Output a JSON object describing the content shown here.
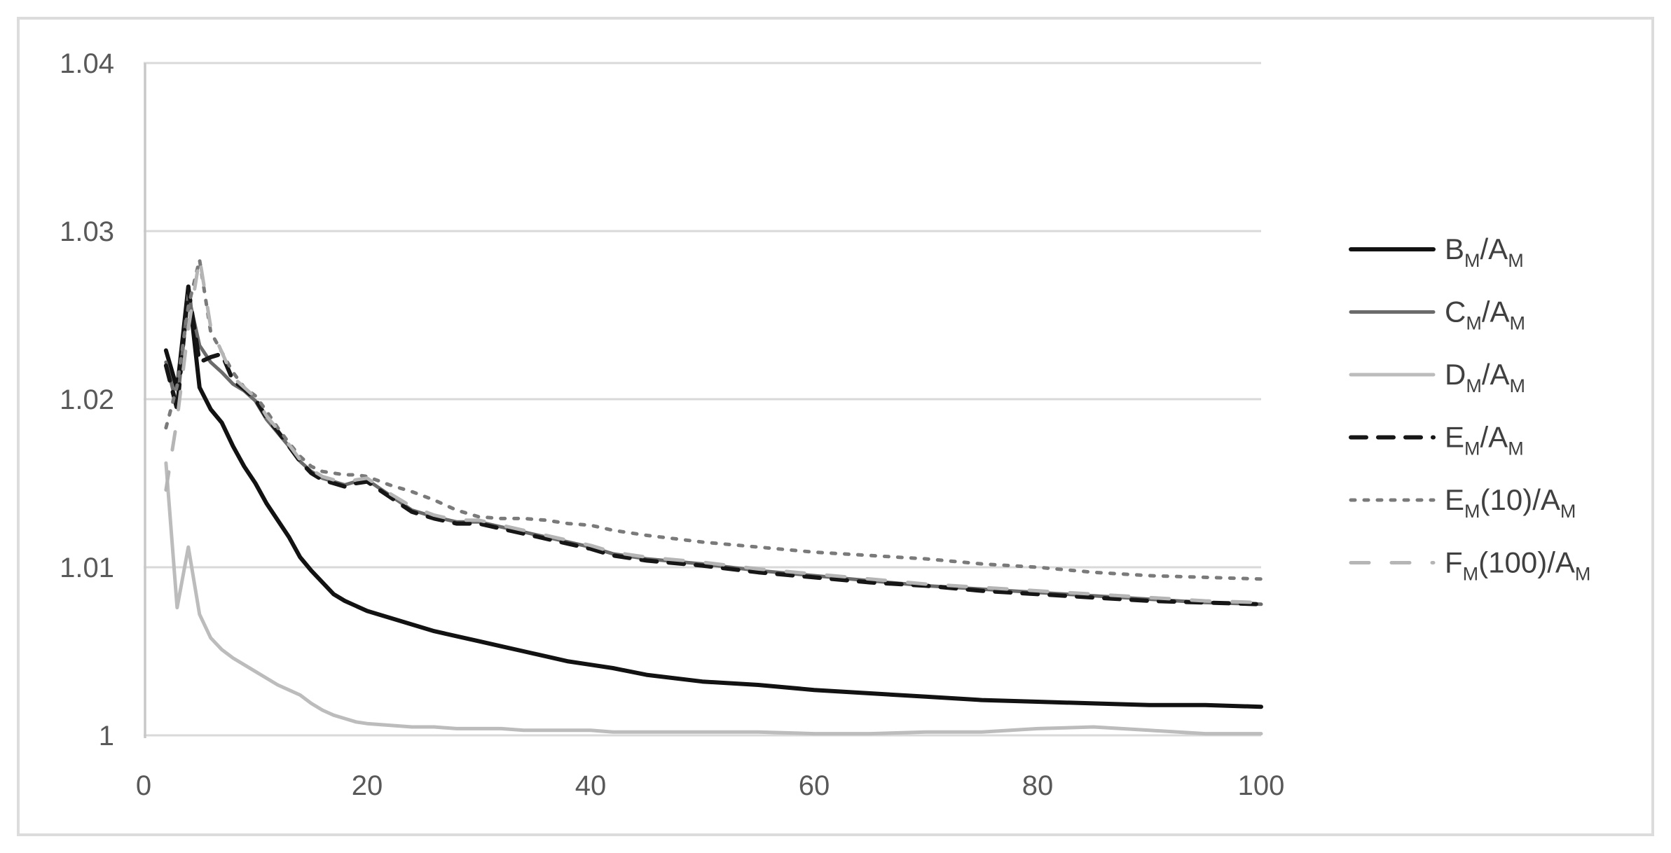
{
  "chart_data": {
    "type": "line",
    "title": "",
    "xlabel": "",
    "ylabel": "",
    "xlim": [
      0,
      100
    ],
    "ylim": [
      1.0,
      1.04
    ],
    "x_ticks": [
      0,
      20,
      40,
      60,
      80,
      100
    ],
    "x_tick_labels": [
      "0",
      "20",
      "40",
      "60",
      "80",
      "100"
    ],
    "y_ticks": [
      1.0,
      1.01,
      1.02,
      1.03,
      1.04
    ],
    "y_tick_labels": [
      "1",
      "1.01",
      "1.02",
      "1.03",
      "1.04"
    ],
    "grid": "horizontal",
    "legend_position": "right",
    "x": [
      2,
      3,
      4,
      5,
      6,
      7,
      8,
      9,
      10,
      11,
      12,
      13,
      14,
      15,
      16,
      17,
      18,
      19,
      20,
      22,
      24,
      26,
      28,
      30,
      32,
      34,
      36,
      38,
      40,
      42,
      45,
      50,
      55,
      60,
      65,
      70,
      75,
      80,
      85,
      90,
      95,
      100
    ],
    "series": [
      {
        "name": "B_M/A_M",
        "style": "solid",
        "color": "#121212",
        "width": 6,
        "values": [
          1.0229,
          1.0206,
          1.0267,
          1.0207,
          1.0194,
          1.0186,
          1.0172,
          1.016,
          1.015,
          1.0138,
          1.0128,
          1.0118,
          1.0106,
          1.0098,
          1.0091,
          1.0084,
          1.008,
          1.0077,
          1.0074,
          1.007,
          1.0066,
          1.0062,
          1.0059,
          1.0056,
          1.0053,
          1.005,
          1.0047,
          1.0044,
          1.0042,
          1.004,
          1.0036,
          1.0032,
          1.003,
          1.0027,
          1.0025,
          1.0023,
          1.0021,
          1.002,
          1.0019,
          1.0018,
          1.0018,
          1.0017
        ]
      },
      {
        "name": "C_M/A_M",
        "style": "solid",
        "color": "#6b6b6b",
        "width": 5,
        "values": [
          1.0222,
          1.0196,
          1.0262,
          1.0232,
          1.0222,
          1.0216,
          1.0209,
          1.0205,
          1.0199,
          1.0188,
          1.018,
          1.0172,
          1.0163,
          1.0157,
          1.0153,
          1.0151,
          1.0149,
          1.0151,
          1.0152,
          1.0143,
          1.0134,
          1.013,
          1.0127,
          1.0127,
          1.0124,
          1.0121,
          1.0118,
          1.0115,
          1.0112,
          1.0108,
          1.0105,
          1.0102,
          1.0098,
          1.0095,
          1.0092,
          1.0089,
          1.0087,
          1.0085,
          1.0083,
          1.0081,
          1.0079,
          1.0078
        ]
      },
      {
        "name": "D_M/A_M",
        "style": "solid",
        "color": "#bcbcbc",
        "width": 5,
        "values": [
          1.0162,
          1.0076,
          1.0112,
          1.0072,
          1.0058,
          1.0051,
          1.0046,
          1.0042,
          1.0038,
          1.0034,
          1.003,
          1.0027,
          1.0024,
          1.0019,
          1.0015,
          1.0012,
          1.001,
          1.0008,
          1.0007,
          1.0006,
          1.0005,
          1.0005,
          1.0004,
          1.0004,
          1.0004,
          1.0003,
          1.0003,
          1.0003,
          1.0003,
          1.0002,
          1.0002,
          1.0002,
          1.0002,
          1.0001,
          1.0001,
          1.0002,
          1.0002,
          1.0004,
          1.0005,
          1.0003,
          1.0001,
          1.0001
        ]
      },
      {
        "name": "E_M/A_M",
        "style": "dash",
        "color": "#161616",
        "width": 6,
        "values": [
          1.022,
          1.0194,
          1.0266,
          1.0222,
          1.0225,
          1.0227,
          1.0211,
          1.0206,
          1.02,
          1.0189,
          1.0181,
          1.0172,
          1.0163,
          1.0156,
          1.0152,
          1.015,
          1.0148,
          1.015,
          1.0151,
          1.0142,
          1.0133,
          1.0129,
          1.0126,
          1.0126,
          1.0123,
          1.012,
          1.0117,
          1.0114,
          1.0111,
          1.0107,
          1.0104,
          1.0101,
          1.0097,
          1.0094,
          1.0091,
          1.0089,
          1.0086,
          1.0084,
          1.0082,
          1.008,
          1.0079,
          1.0078
        ]
      },
      {
        "name": "E_M(10)/A_M",
        "style": "dot",
        "color": "#7a7a7a",
        "width": 5,
        "values": [
          1.0183,
          1.0208,
          1.0255,
          1.0283,
          1.024,
          1.0228,
          1.0216,
          1.0207,
          1.0202,
          1.0193,
          1.0183,
          1.0174,
          1.0166,
          1.016,
          1.0157,
          1.0156,
          1.0155,
          1.0155,
          1.0154,
          1.0149,
          1.0145,
          1.014,
          1.0134,
          1.013,
          1.0129,
          1.0129,
          1.0128,
          1.0126,
          1.0125,
          1.0122,
          1.0119,
          1.0115,
          1.0112,
          1.0109,
          1.0107,
          1.0105,
          1.0102,
          1.01,
          1.0097,
          1.0095,
          1.0094,
          1.0093
        ]
      },
      {
        "name": "F_M(100)/A_M",
        "style": "long-dash",
        "color": "#b5b5b5",
        "width": 5,
        "values": [
          1.0146,
          1.0188,
          1.0242,
          1.0284,
          1.0243,
          1.0228,
          1.0213,
          1.0207,
          1.0201,
          1.019,
          1.0182,
          1.0173,
          1.0164,
          1.0158,
          1.0154,
          1.0152,
          1.015,
          1.0152,
          1.0153,
          1.0144,
          1.0136,
          1.0131,
          1.0128,
          1.0128,
          1.0125,
          1.0122,
          1.0119,
          1.0116,
          1.0113,
          1.0109,
          1.0106,
          1.0103,
          1.0099,
          1.0096,
          1.0093,
          1.009,
          1.0088,
          1.0086,
          1.0084,
          1.0082,
          1.008,
          1.0079
        ]
      }
    ]
  },
  "colors": {
    "gridline": "#d9d9d9",
    "axis_line": "#c8c8c8",
    "tick_label": "#595959",
    "legend_text": "#404040",
    "frame_border": "#dcdcdc",
    "background": "#ffffff"
  }
}
